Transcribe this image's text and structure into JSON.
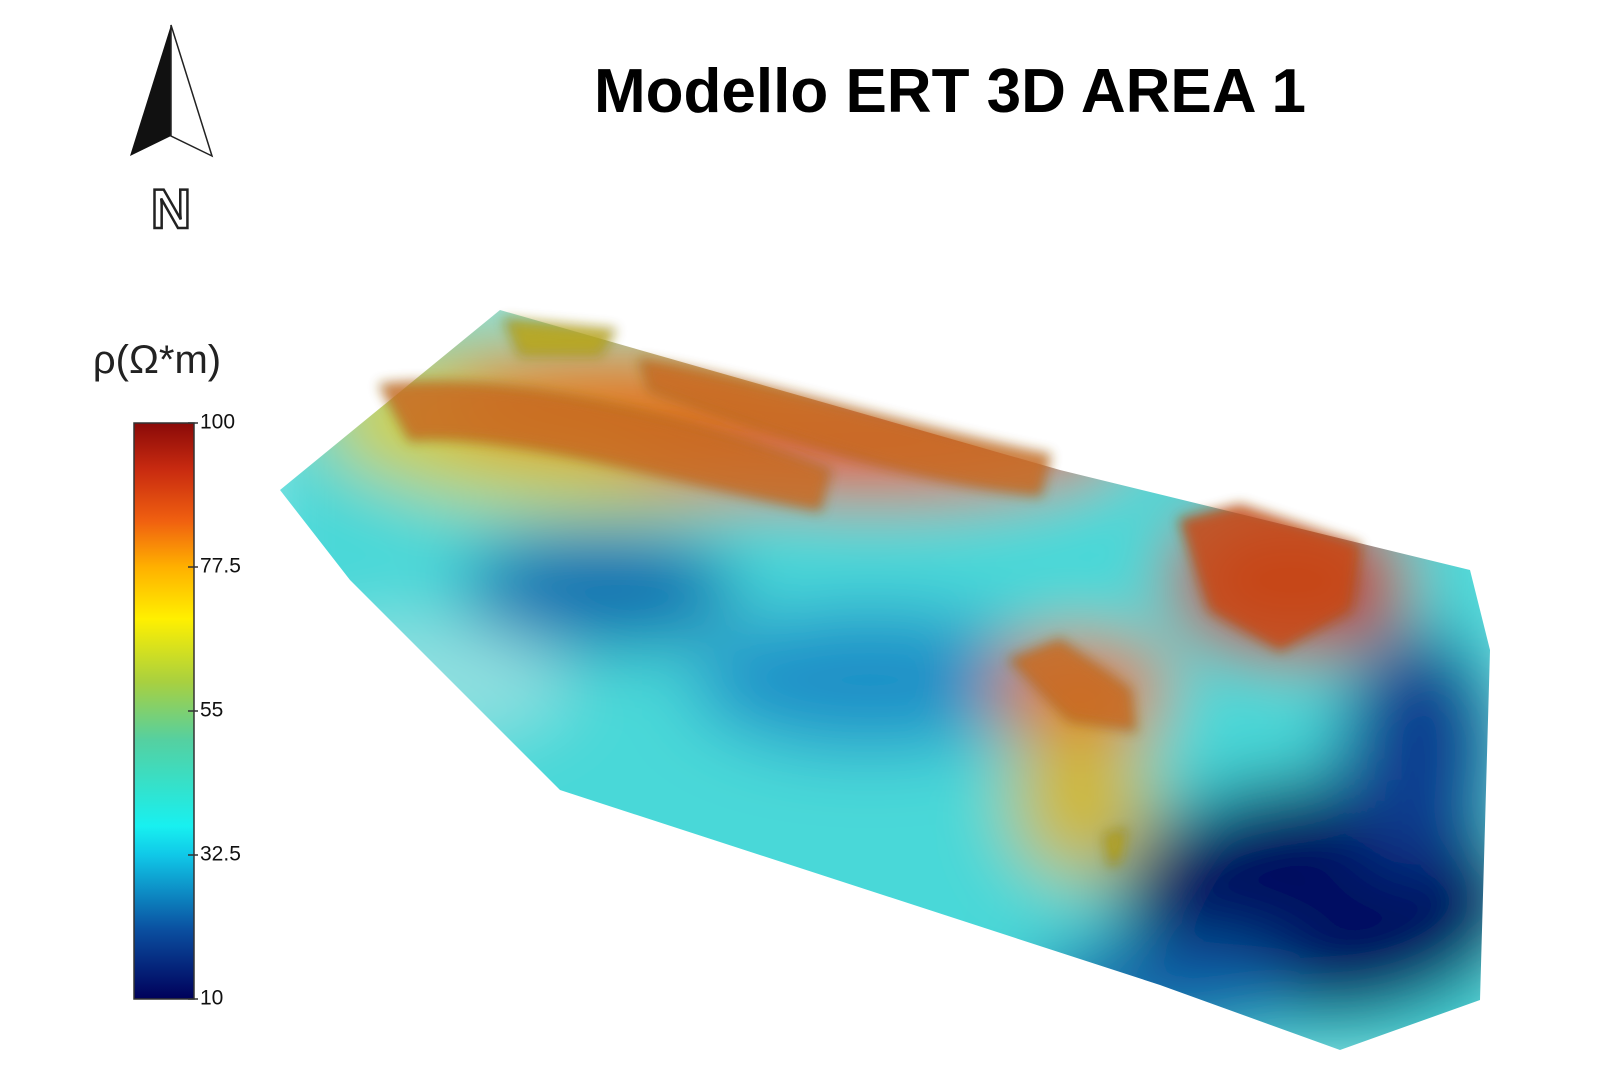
{
  "title": "Modello ERT 3D AREA 1",
  "north_label": "N",
  "colorbar": {
    "label": "ρ(Ω*m)",
    "lim": [
      10,
      100
    ],
    "ticks": [
      10,
      32.5,
      55,
      77.5,
      100
    ]
  }
}
